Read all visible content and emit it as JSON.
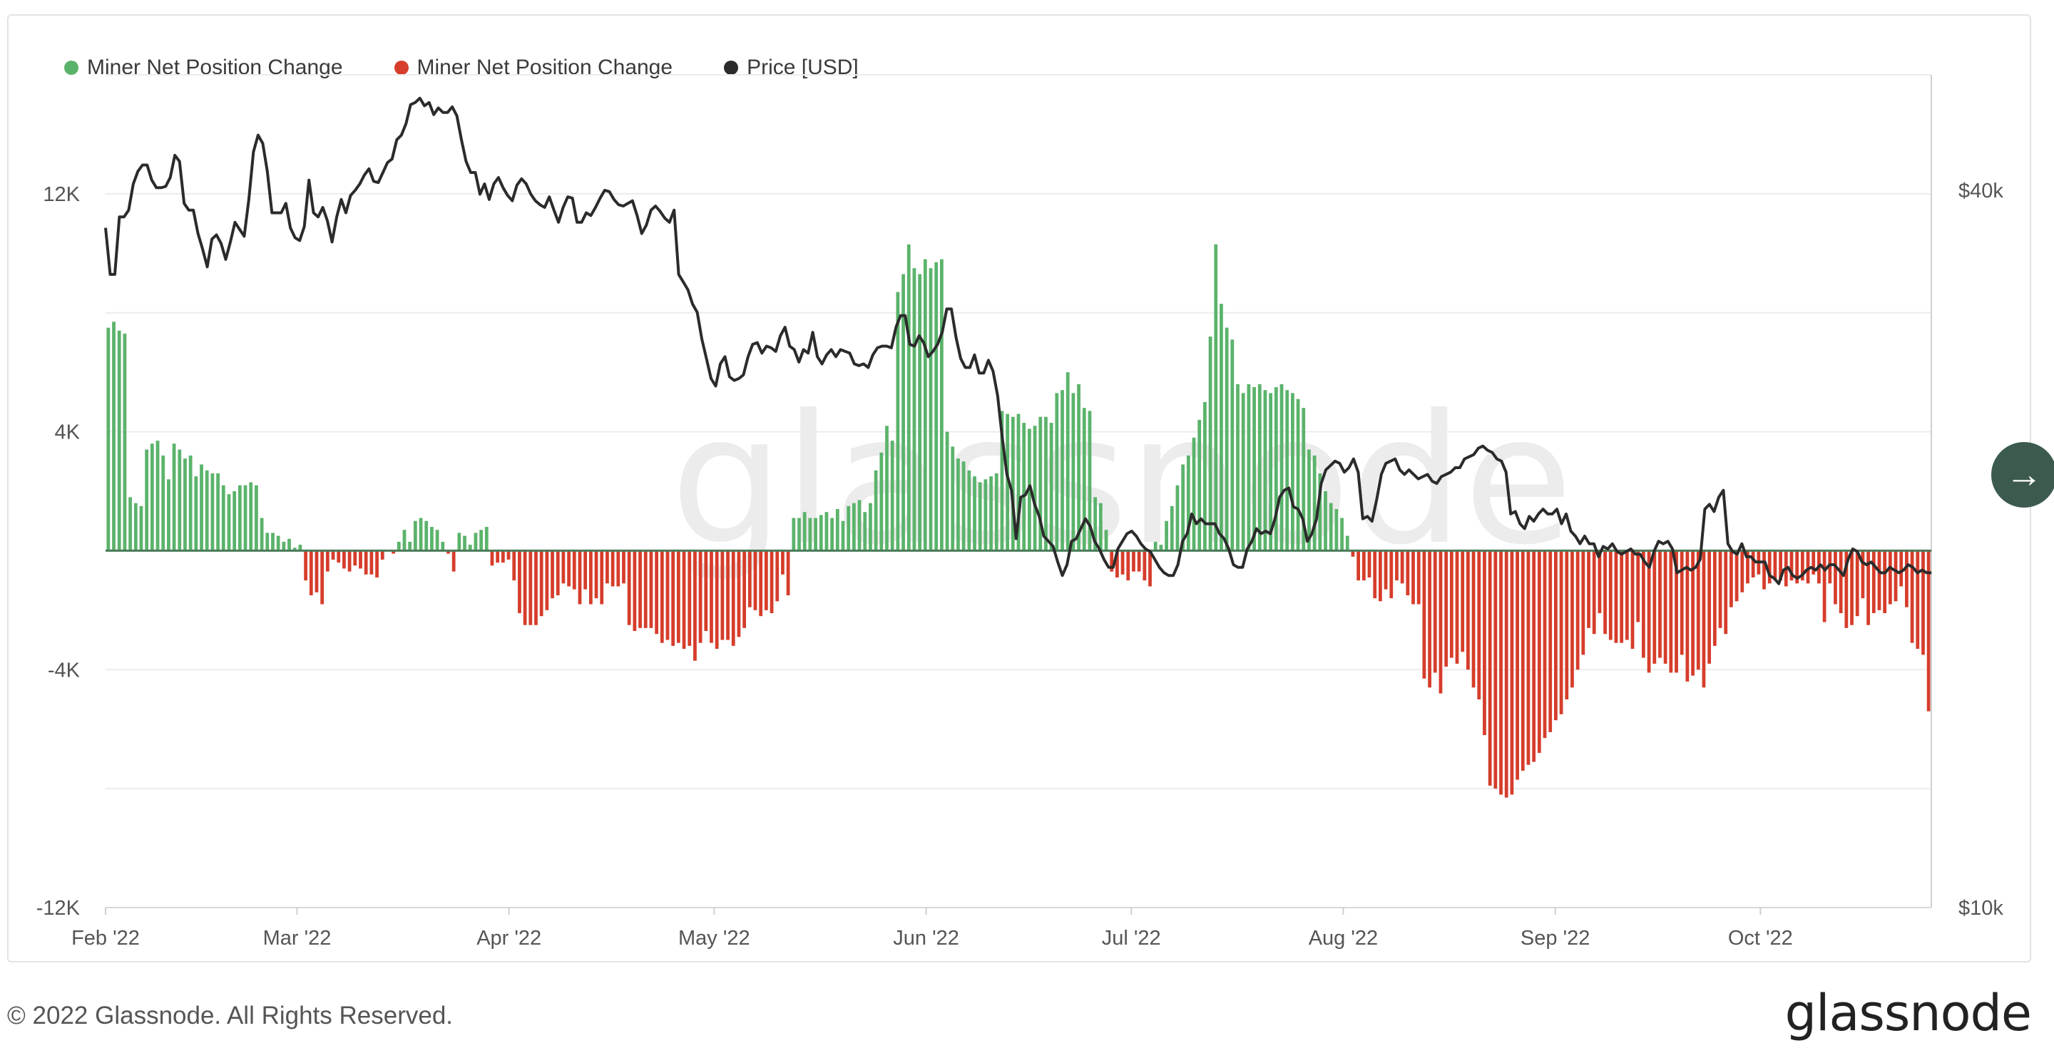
{
  "legend": [
    {
      "label": "Miner Net Position Change",
      "color": "#5bb36b"
    },
    {
      "label": "Miner Net Position Change",
      "color": "#d63d2b"
    },
    {
      "label": "Price [USD]",
      "color": "#2b2b2b"
    }
  ],
  "watermark": "glassnode",
  "footer": {
    "copyright": "© 2022 Glassnode. All Rights Reserved.",
    "logo": "glassnode"
  },
  "next_icon": "→",
  "chart_data": {
    "type": "bar",
    "series": [
      {
        "name": "Miner Net Position Change",
        "role": "positive-bars",
        "color": "#5bb36b"
      },
      {
        "name": "Miner Net Position Change",
        "role": "negative-bars",
        "color": "#d63d2b"
      },
      {
        "name": "Price [USD]",
        "role": "line",
        "color": "#2b2b2b"
      }
    ],
    "x_ticks": [
      "Feb '22",
      "Mar '22",
      "Apr '22",
      "May '22",
      "Jun '22",
      "Jul '22",
      "Aug '22",
      "Sep '22",
      "Oct '22"
    ],
    "x_range": [
      "2022-02-01",
      "2022-10-26"
    ],
    "left_axis": {
      "ticks": [
        "12K",
        "4K",
        "-4K",
        "-12K"
      ],
      "tick_values": [
        12000,
        4000,
        -4000,
        -12000
      ],
      "ylim": [
        -12000,
        16000
      ]
    },
    "right_axis": {
      "ticks": [
        "$40k",
        "$10k"
      ],
      "tick_values": [
        40000,
        10000
      ],
      "scale": "log",
      "ylim": [
        10000,
        50000
      ]
    },
    "grid": true,
    "legend_position": "top-left",
    "net_position_change_daily": [
      7500,
      7700,
      7400,
      7300,
      1800,
      1600,
      1500,
      3400,
      3600,
      3700,
      3200,
      2400,
      3600,
      3400,
      3100,
      3200,
      2500,
      2900,
      2700,
      2600,
      2600,
      2200,
      1900,
      2000,
      2200,
      2200,
      2300,
      2200,
      1100,
      600,
      600,
      500,
      300,
      400,
      100,
      200,
      -1000,
      -1500,
      -1400,
      -1800,
      -700,
      -300,
      -400,
      -600,
      -700,
      -500,
      -600,
      -800,
      -800,
      -900,
      -300,
      0,
      -100,
      300,
      700,
      300,
      1000,
      1100,
      1000,
      800,
      700,
      300,
      -100,
      -700,
      600,
      500,
      200,
      600,
      700,
      800,
      -500,
      -400,
      -400,
      -300,
      -1000,
      -2100,
      -2500,
      -2500,
      -2500,
      -2200,
      -2000,
      -1600,
      -1500,
      -1100,
      -1200,
      -1300,
      -1800,
      -1300,
      -1800,
      -1600,
      -1800,
      -1100,
      -1200,
      -1200,
      -1100,
      -2500,
      -2700,
      -2600,
      -2600,
      -2600,
      -2800,
      -3100,
      -3000,
      -3200,
      -3100,
      -3300,
      -3200,
      -3700,
      -3100,
      -2700,
      -3100,
      -3300,
      -3000,
      -3000,
      -3200,
      -2900,
      -2600,
      -1900,
      -2000,
      -2200,
      -2000,
      -2100,
      -1700,
      -800,
      -1500,
      1100,
      1100,
      1300,
      1100,
      1100,
      1200,
      1300,
      1100,
      1400,
      1000,
      1500,
      1600,
      1700,
      1300,
      1600,
      2700,
      3300,
      4200,
      3700,
      8700,
      9300,
      10300,
      9500,
      9300,
      9800,
      9500,
      9700,
      9800,
      4000,
      3500,
      3100,
      3000,
      2700,
      2500,
      2300,
      2400,
      2500,
      2600,
      4700,
      4600,
      4500,
      4600,
      4300,
      4100,
      4200,
      4500,
      4500,
      4300,
      5300,
      5400,
      6000,
      5300,
      5600,
      4800,
      4700,
      1800,
      1600,
      700,
      -700,
      -900,
      -800,
      -1000,
      -700,
      -700,
      -1000,
      -1200,
      300,
      200,
      1000,
      1500,
      2200,
      2900,
      3200,
      3800,
      4400,
      5000,
      7200,
      10300,
      8300,
      7500,
      7100,
      5600,
      5300,
      5600,
      5500,
      5600,
      5400,
      5300,
      5500,
      5600,
      5400,
      5300,
      5100,
      4800,
      3400,
      3200,
      2600,
      2000,
      1600,
      1400,
      1100,
      500,
      -200,
      -1000,
      -1000,
      -900,
      -1600,
      -1700,
      -1300,
      -1600,
      -1000,
      -1100,
      -1500,
      -1800,
      -1800,
      -4300,
      -4600,
      -4100,
      -4800,
      -3900,
      -3600,
      -3800,
      -3400,
      -4000,
      -4600,
      -5000,
      -6200,
      -7900,
      -8000,
      -8200,
      -8300,
      -8200,
      -7700,
      -7400,
      -7200,
      -7100,
      -6800,
      -6300,
      -6100,
      -5700,
      -5500,
      -5000,
      -4600,
      -4000,
      -3500,
      -2600,
      -2800,
      -2100,
      -2800,
      -3000,
      -3100,
      -3100,
      -3000,
      -3300,
      -2400,
      -3600,
      -4100,
      -3800,
      -3600,
      -3800,
      -4100,
      -4100,
      -3500,
      -4400,
      -4200,
      -4000,
      -4600,
      -3800,
      -3200,
      -2600,
      -2800,
      -1900,
      -1700,
      -1400,
      -1100,
      -900,
      -800,
      -1300,
      -1100,
      -1000,
      -1000,
      -1200,
      -1000,
      -1100,
      -1000,
      -1100,
      -800,
      -1100,
      -2400,
      -1100,
      -1800,
      -2100,
      -2600,
      -2500,
      -2200,
      -1600,
      -2500,
      -2100,
      -2000,
      -2100,
      -1800,
      -1700,
      -1200,
      -1900,
      -3100,
      -3300,
      -3500,
      -5400
    ],
    "price_usd": [
      37200,
      34000,
      34000,
      38000,
      38000,
      38500,
      40500,
      41500,
      42000,
      42000,
      40800,
      40200,
      40200,
      40300,
      41000,
      42800,
      42300,
      39000,
      38500,
      38500,
      36800,
      35700,
      34500,
      36400,
      36700,
      36100,
      35000,
      36200,
      37600,
      37100,
      36600,
      39300,
      43100,
      44500,
      43800,
      41500,
      38300,
      38300,
      38300,
      39000,
      37200,
      36500,
      36300,
      37300,
      40800,
      38300,
      38000,
      38700,
      37700,
      36200,
      38000,
      39300,
      38300,
      39600,
      40000,
      40500,
      41200,
      41700,
      40700,
      40600,
      41400,
      42200,
      42500,
      44100,
      44500,
      45500,
      47200,
      47400,
      47800,
      47100,
      47400,
      46300,
      46900,
      46500,
      46500,
      47000,
      46200,
      44100,
      42300,
      41400,
      41400,
      39700,
      40500,
      39300,
      40500,
      41000,
      40200,
      39600,
      39200,
      40400,
      40900,
      40500,
      39700,
      39200,
      38900,
      38700,
      39500,
      38500,
      37600,
      38700,
      39500,
      39400,
      37600,
      37600,
      38300,
      38100,
      38700,
      39400,
      40000,
      39900,
      39300,
      38900,
      38800,
      39000,
      39200,
      38100,
      36800,
      37400,
      38500,
      38800,
      38400,
      37900,
      37600,
      38500,
      34000,
      33500,
      33000,
      32100,
      31600,
      30000,
      28900,
      27800,
      27400,
      28600,
      29000,
      27900,
      27700,
      27800,
      28000,
      29000,
      29700,
      29800,
      29200,
      29600,
      29500,
      29300,
      30200,
      30700,
      29600,
      29400,
      28700,
      29400,
      29200,
      30400,
      29000,
      28600,
      29100,
      29400,
      29000,
      29400,
      29300,
      29200,
      28600,
      28500,
      28600,
      28400,
      29100,
      29500,
      29600,
      29600,
      29500,
      30700,
      31400,
      31400,
      29700,
      29600,
      30200,
      29800,
      29000,
      29300,
      29700,
      30400,
      31800,
      31800,
      30100,
      28900,
      28400,
      28400,
      29100,
      28100,
      28100,
      28800,
      28200,
      26900,
      24800,
      23100,
      22400,
      20400,
      22100,
      22200,
      22600,
      21800,
      21300,
      20500,
      20300,
      20100,
      19500,
      19000,
      19400,
      20300,
      20400,
      20800,
      21200,
      20900,
      20300,
      20000,
      19600,
      19300,
      19300,
      20000,
      20300,
      20600,
      20700,
      20500,
      20200,
      20000,
      19900,
      19600,
      19300,
      19100,
      19000,
      19000,
      19400,
      20300,
      20600,
      21400,
      21000,
      21200,
      21000,
      21000,
      21000,
      20600,
      20400,
      20000,
      19400,
      19300,
      19300,
      20000,
      20300,
      20800,
      20600,
      20700,
      20600,
      21200,
      22100,
      22400,
      22500,
      21700,
      21600,
      21200,
      20300,
      20600,
      21200,
      22700,
      23300,
      23500,
      23700,
      23600,
      23200,
      23400,
      23800,
      23200,
      21200,
      21300,
      21100,
      22000,
      23100,
      23600,
      23700,
      23800,
      23300,
      23100,
      23300,
      23100,
      22900,
      23000,
      23100,
      22800,
      22700,
      23000,
      23100,
      23200,
      23400,
      23400,
      23800,
      23900,
      24000,
      24300,
      24400,
      24200,
      24100,
      23800,
      23700,
      23200,
      21400,
      21500,
      21000,
      20800,
      21300,
      21100,
      21400,
      21600,
      21400,
      21400,
      21600,
      21000,
      21400,
      20700,
      20500,
      20200,
      20500,
      20200,
      20200,
      19700,
      20100,
      20000,
      20200,
      19900,
      19800,
      19900,
      20000,
      19800,
      19800,
      19500,
      19300,
      19900,
      20300,
      20200,
      20300,
      20000,
      19100,
      19200,
      19300,
      19200,
      19300,
      19600,
      21600,
      21800,
      21500,
      22100,
      22400,
      20200,
      19900,
      19800,
      20200,
      19700,
      19700,
      19500,
      19500,
      19500,
      19000,
      18900,
      18700,
      19200,
      19300,
      19000,
      18900,
      19000,
      19200,
      19300,
      19200,
      19400,
      19200,
      19400,
      19400,
      19200,
      19000,
      19600,
      20000,
      19900,
      19500,
      19400,
      19500,
      19300,
      19100,
      19100,
      19300,
      19200,
      19100,
      19200,
      19400,
      19300,
      19100,
      19200,
      19100,
      19100
    ]
  }
}
